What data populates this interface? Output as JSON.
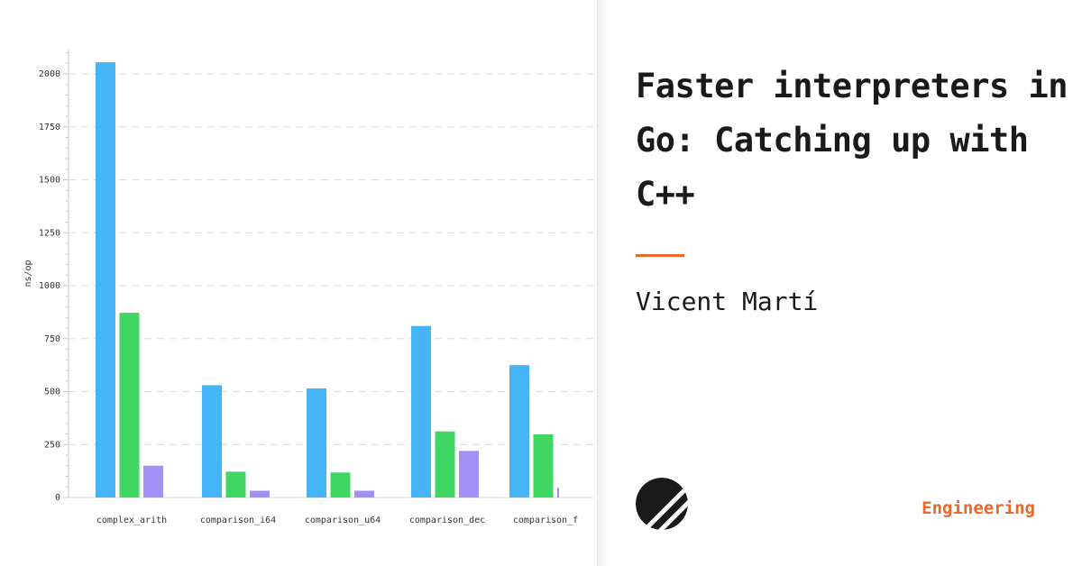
{
  "post": {
    "title": "Faster interpreters in Go: Catching up with C++",
    "author": "Vicent Martí",
    "category": "Engineering"
  },
  "colors": {
    "accent": "#e8692c",
    "text": "#1a1a1a",
    "series": [
      "#45b5f7",
      "#3fd663",
      "#a48ff4"
    ]
  },
  "chart_data": {
    "type": "bar",
    "title": "",
    "xlabel": "",
    "ylabel": "ns/op",
    "ylim": [
      0,
      2100
    ],
    "yticks": [
      0,
      250,
      500,
      750,
      1000,
      1250,
      1500,
      1750,
      2000
    ],
    "categories": [
      "complex_arith",
      "comparison_i64",
      "comparison_u64",
      "comparison_dec",
      "comparison_f"
    ],
    "series": [
      {
        "values": [
          2055,
          530,
          515,
          810,
          625
        ]
      },
      {
        "values": [
          872,
          122,
          118,
          312,
          298
        ]
      },
      {
        "values": [
          150,
          32,
          32,
          220,
          45
        ]
      }
    ],
    "grid": true,
    "legend": "none"
  }
}
